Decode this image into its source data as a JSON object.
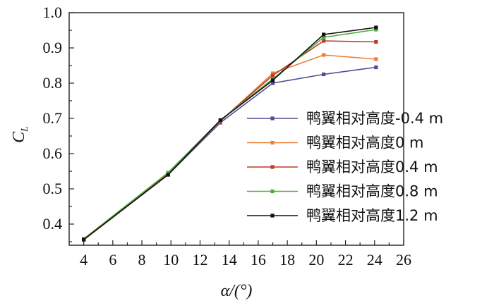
{
  "chart_data": {
    "type": "line",
    "xlabel": "α/(°)",
    "ylabel": "C",
    "ylabel_sub": "L",
    "xlim": [
      3,
      26
    ],
    "ylim": [
      0.34,
      1.0
    ],
    "xticks": [
      4,
      6,
      8,
      10,
      12,
      14,
      16,
      18,
      20,
      22,
      24,
      26
    ],
    "yticks": [
      0.4,
      0.5,
      0.6,
      0.7,
      0.8,
      0.9,
      1.0
    ],
    "ytick_labels": [
      "0.4",
      "0.5",
      "0.6",
      "0.7",
      "0.8",
      "0.9",
      "1.0"
    ],
    "grid": false,
    "legend_position": "right-middle",
    "x": [
      4,
      9.8,
      13.4,
      17,
      20.5,
      24.1
    ],
    "series": [
      {
        "name": "鸭翼相对高度-0.4 m",
        "color": "#4f4b95",
        "values": [
          0.355,
          0.54,
          0.688,
          0.8,
          0.825,
          0.845
        ]
      },
      {
        "name": "鸭翼相对高度0 m",
        "color": "#ee7e34",
        "values": [
          0.355,
          0.542,
          0.692,
          0.828,
          0.88,
          0.868
        ]
      },
      {
        "name": "鸭翼相对高度0.4 m",
        "color": "#c0392b",
        "values": [
          0.356,
          0.542,
          0.693,
          0.822,
          0.92,
          0.917
        ]
      },
      {
        "name": "鸭翼相对高度0.8 m",
        "color": "#4daf38",
        "values": [
          0.358,
          0.546,
          0.695,
          0.812,
          0.93,
          0.952
        ]
      },
      {
        "name": "鸭翼相对高度1.2 m",
        "color": "#111111",
        "values": [
          0.356,
          0.54,
          0.695,
          0.808,
          0.938,
          0.958
        ]
      }
    ]
  }
}
